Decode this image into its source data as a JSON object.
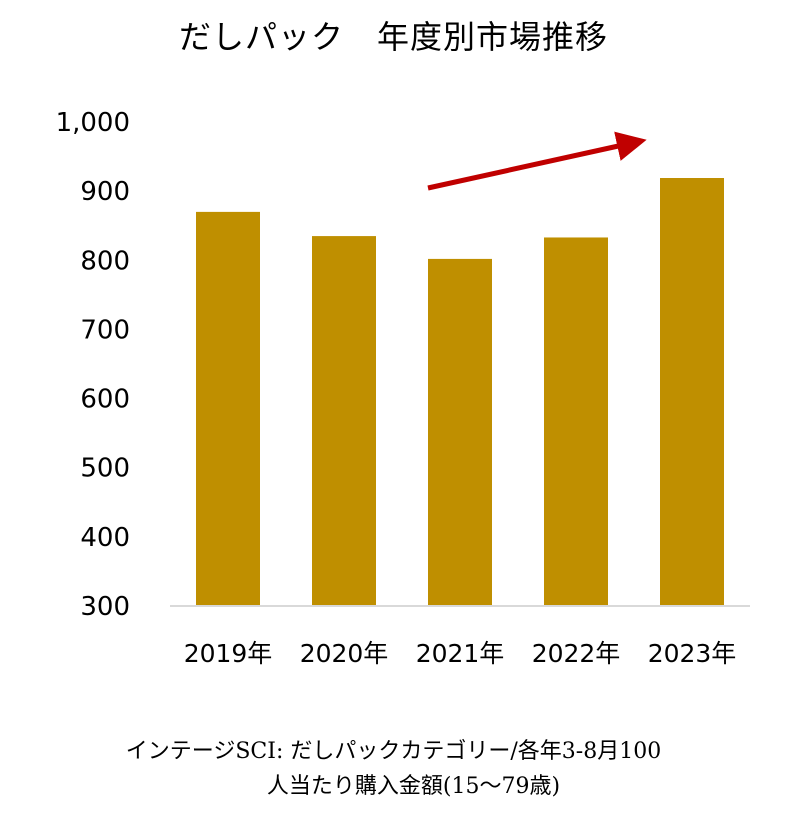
{
  "title": "だしパック　年度別市場推移",
  "chart_data": {
    "type": "bar",
    "categories": [
      "2019年",
      "2020年",
      "2021年",
      "2022年",
      "2023年"
    ],
    "values": [
      870,
      835,
      802,
      833,
      919
    ],
    "yticks": [
      "300",
      "400",
      "500",
      "600",
      "700",
      "800",
      "900",
      "1,000"
    ],
    "ylim": [
      300,
      1000
    ],
    "bar_color": "#BF8F00",
    "arrow_color": "#C00000",
    "annotation": "upward-trend-arrow"
  },
  "footnote": {
    "line1": "インテージSCI: だしパックカテゴリー/各年3-8月100",
    "line2": "人当たり購入金額(15～79歳)"
  }
}
